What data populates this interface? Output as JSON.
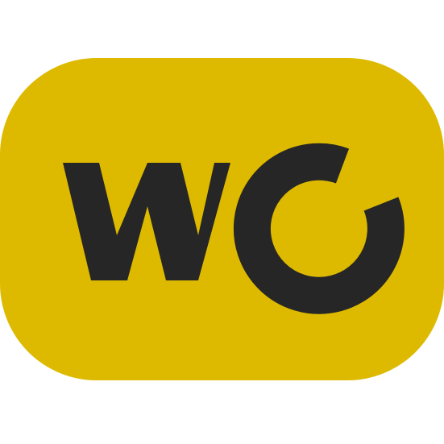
{
  "logo": {
    "text": "WO",
    "background_color": "#DDBA00",
    "mark_color": "#262626",
    "page_background": "#FFFFFF"
  }
}
